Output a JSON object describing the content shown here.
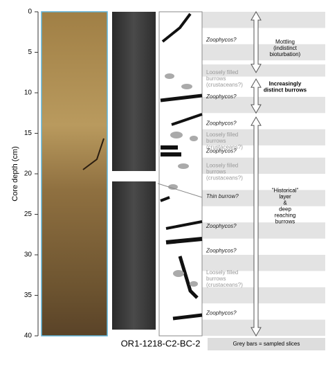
{
  "chart_data": {
    "type": "core-log",
    "ylabel": "Core depth (cm)",
    "ylim": [
      0,
      40
    ],
    "yticks": [
      0,
      5,
      10,
      15,
      20,
      25,
      30,
      35,
      40
    ],
    "core_label": "OR1-1218-C2-BC-2",
    "legend": "Grey bars = sampled slices",
    "sampled_slices": [
      [
        0,
        2
      ],
      [
        4,
        6
      ],
      [
        6.5,
        8
      ],
      [
        10.5,
        12.5
      ],
      [
        14.5,
        16.5
      ],
      [
        18,
        20
      ],
      [
        22,
        24
      ],
      [
        26,
        28
      ],
      [
        30,
        32
      ],
      [
        34,
        36
      ],
      [
        38,
        40
      ]
    ],
    "annotations": [
      {
        "depth": 3.5,
        "style": "dark",
        "lines": [
          "Zoophycos?"
        ]
      },
      {
        "depth": 7.5,
        "style": "light",
        "lines": [
          "Loosely filled",
          "burrows",
          "(crustaceans?)"
        ]
      },
      {
        "depth": 10.5,
        "style": "dark",
        "lines": [
          "Zoophycos?"
        ]
      },
      {
        "depth": 13.8,
        "style": "dark",
        "lines": [
          "Zoophycos?"
        ]
      },
      {
        "depth": 15.2,
        "style": "light",
        "lines": [
          "Loosely filled",
          "burrows",
          "(crustaceans?)"
        ]
      },
      {
        "depth": 17.2,
        "style": "dark",
        "lines": [
          "Zoophycos?"
        ]
      },
      {
        "depth": 19,
        "style": "light",
        "lines": [
          "Loosely filled",
          "burrows",
          "(crustaceans?)"
        ]
      },
      {
        "depth": 22.8,
        "style": "dark",
        "lines": [
          "Thin burrow?"
        ]
      },
      {
        "depth": 26.5,
        "style": "dark",
        "lines": [
          "Zoophycos?"
        ]
      },
      {
        "depth": 29.5,
        "style": "dark",
        "lines": [
          "Zoophycos?"
        ]
      },
      {
        "depth": 32.2,
        "style": "light",
        "lines": [
          "Loosely filled",
          "burrows",
          "(crustaceans?)"
        ]
      },
      {
        "depth": 37.2,
        "style": "dark",
        "lines": [
          "Zoophycos?"
        ]
      }
    ],
    "zones": [
      {
        "top": 0,
        "bottom": 7.5,
        "label_depth": 4.5,
        "bold": false,
        "lines": [
          "Mottling",
          "(indistinct",
          "bioturbation)"
        ]
      },
      {
        "top": 8.3,
        "bottom": 12.5,
        "label_depth": 9.3,
        "bold": true,
        "lines": [
          "Increasingly",
          "distinct burrows"
        ]
      },
      {
        "top": 13,
        "bottom": 40,
        "label_depth": 24,
        "bold": false,
        "lines": [
          "\"Historical\"",
          "layer",
          "&",
          "deep",
          "reaching",
          "burrows"
        ]
      }
    ]
  }
}
